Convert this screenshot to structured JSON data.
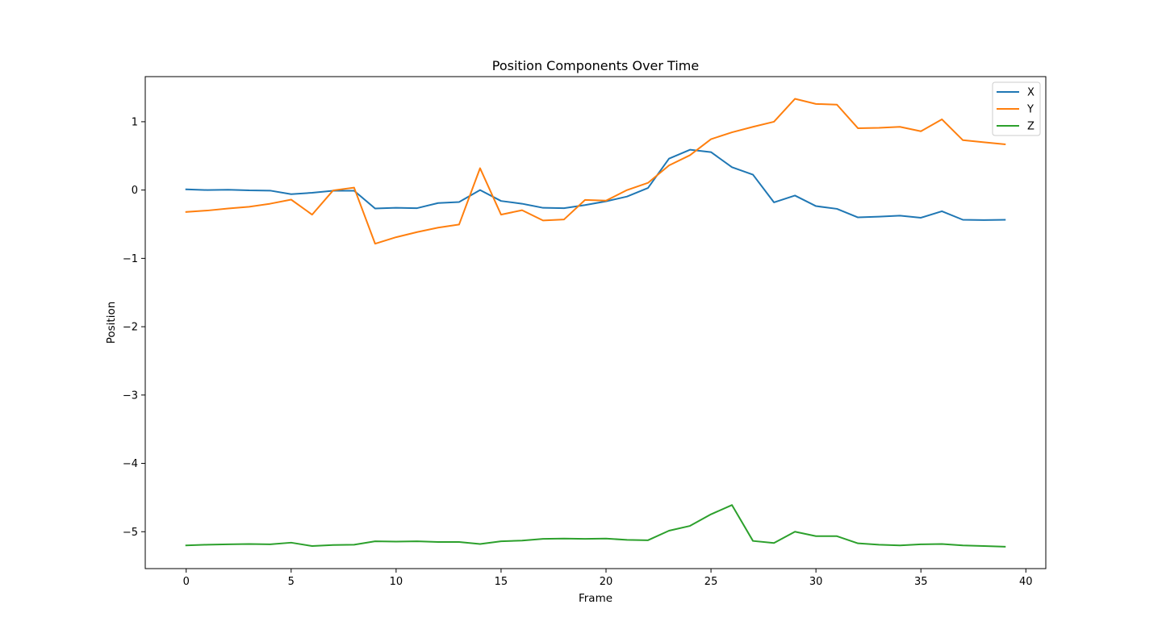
{
  "chart_data": {
    "type": "line",
    "title": "Position Components Over Time",
    "xlabel": "Frame",
    "ylabel": "Position",
    "xlim": [
      -1.95,
      40.95
    ],
    "ylim": [
      -5.54,
      1.66
    ],
    "xticks": [
      0,
      5,
      10,
      15,
      20,
      25,
      30,
      35,
      40
    ],
    "xtick_labels": [
      "0",
      "5",
      "10",
      "15",
      "20",
      "25",
      "30",
      "35",
      "40"
    ],
    "yticks": [
      -5,
      -4,
      -3,
      -2,
      -1,
      0,
      1
    ],
    "ytick_labels": [
      "−5",
      "−4",
      "−3",
      "−2",
      "−1",
      "0",
      "1"
    ],
    "grid": false,
    "legend_position": "top-right",
    "x": [
      0,
      1,
      2,
      3,
      4,
      5,
      6,
      7,
      8,
      9,
      10,
      11,
      12,
      13,
      14,
      15,
      16,
      17,
      18,
      19,
      20,
      21,
      22,
      23,
      24,
      25,
      26,
      27,
      28,
      29,
      30,
      31,
      32,
      33,
      34,
      35,
      36,
      37,
      38,
      39
    ],
    "series": [
      {
        "name": "X",
        "color": "#1f77b4",
        "values": [
          0.01,
          0.0,
          0.005,
          -0.005,
          -0.008,
          -0.06,
          -0.04,
          -0.01,
          -0.01,
          -0.27,
          -0.26,
          -0.265,
          -0.19,
          -0.175,
          0.0,
          -0.16,
          -0.2,
          -0.26,
          -0.265,
          -0.22,
          -0.165,
          -0.095,
          0.03,
          0.46,
          0.59,
          0.555,
          0.335,
          0.225,
          -0.18,
          -0.08,
          -0.235,
          -0.275,
          -0.4,
          -0.39,
          -0.375,
          -0.405,
          -0.31,
          -0.435,
          -0.44,
          -0.435
        ]
      },
      {
        "name": "Y",
        "color": "#ff7f0e",
        "values": [
          -0.32,
          -0.3,
          -0.27,
          -0.245,
          -0.2,
          -0.14,
          -0.36,
          -0.005,
          0.035,
          -0.785,
          -0.69,
          -0.615,
          -0.55,
          -0.505,
          0.32,
          -0.36,
          -0.295,
          -0.445,
          -0.43,
          -0.145,
          -0.155,
          0.0,
          0.105,
          0.36,
          0.51,
          0.745,
          0.845,
          0.925,
          1.0,
          1.335,
          1.26,
          1.25,
          0.905,
          0.91,
          0.925,
          0.86,
          1.035,
          0.73,
          0.7,
          0.67
        ]
      },
      {
        "name": "Z",
        "color": "#2ca02c",
        "values": [
          -5.2,
          -5.19,
          -5.185,
          -5.18,
          -5.185,
          -5.16,
          -5.21,
          -5.195,
          -5.19,
          -5.14,
          -5.145,
          -5.14,
          -5.15,
          -5.15,
          -5.18,
          -5.14,
          -5.13,
          -5.105,
          -5.1,
          -5.105,
          -5.1,
          -5.12,
          -5.125,
          -4.985,
          -4.915,
          -4.745,
          -4.61,
          -5.135,
          -5.165,
          -5.0,
          -5.065,
          -5.065,
          -5.17,
          -5.19,
          -5.2,
          -5.185,
          -5.18,
          -5.2,
          -5.21,
          -5.22
        ]
      }
    ]
  }
}
